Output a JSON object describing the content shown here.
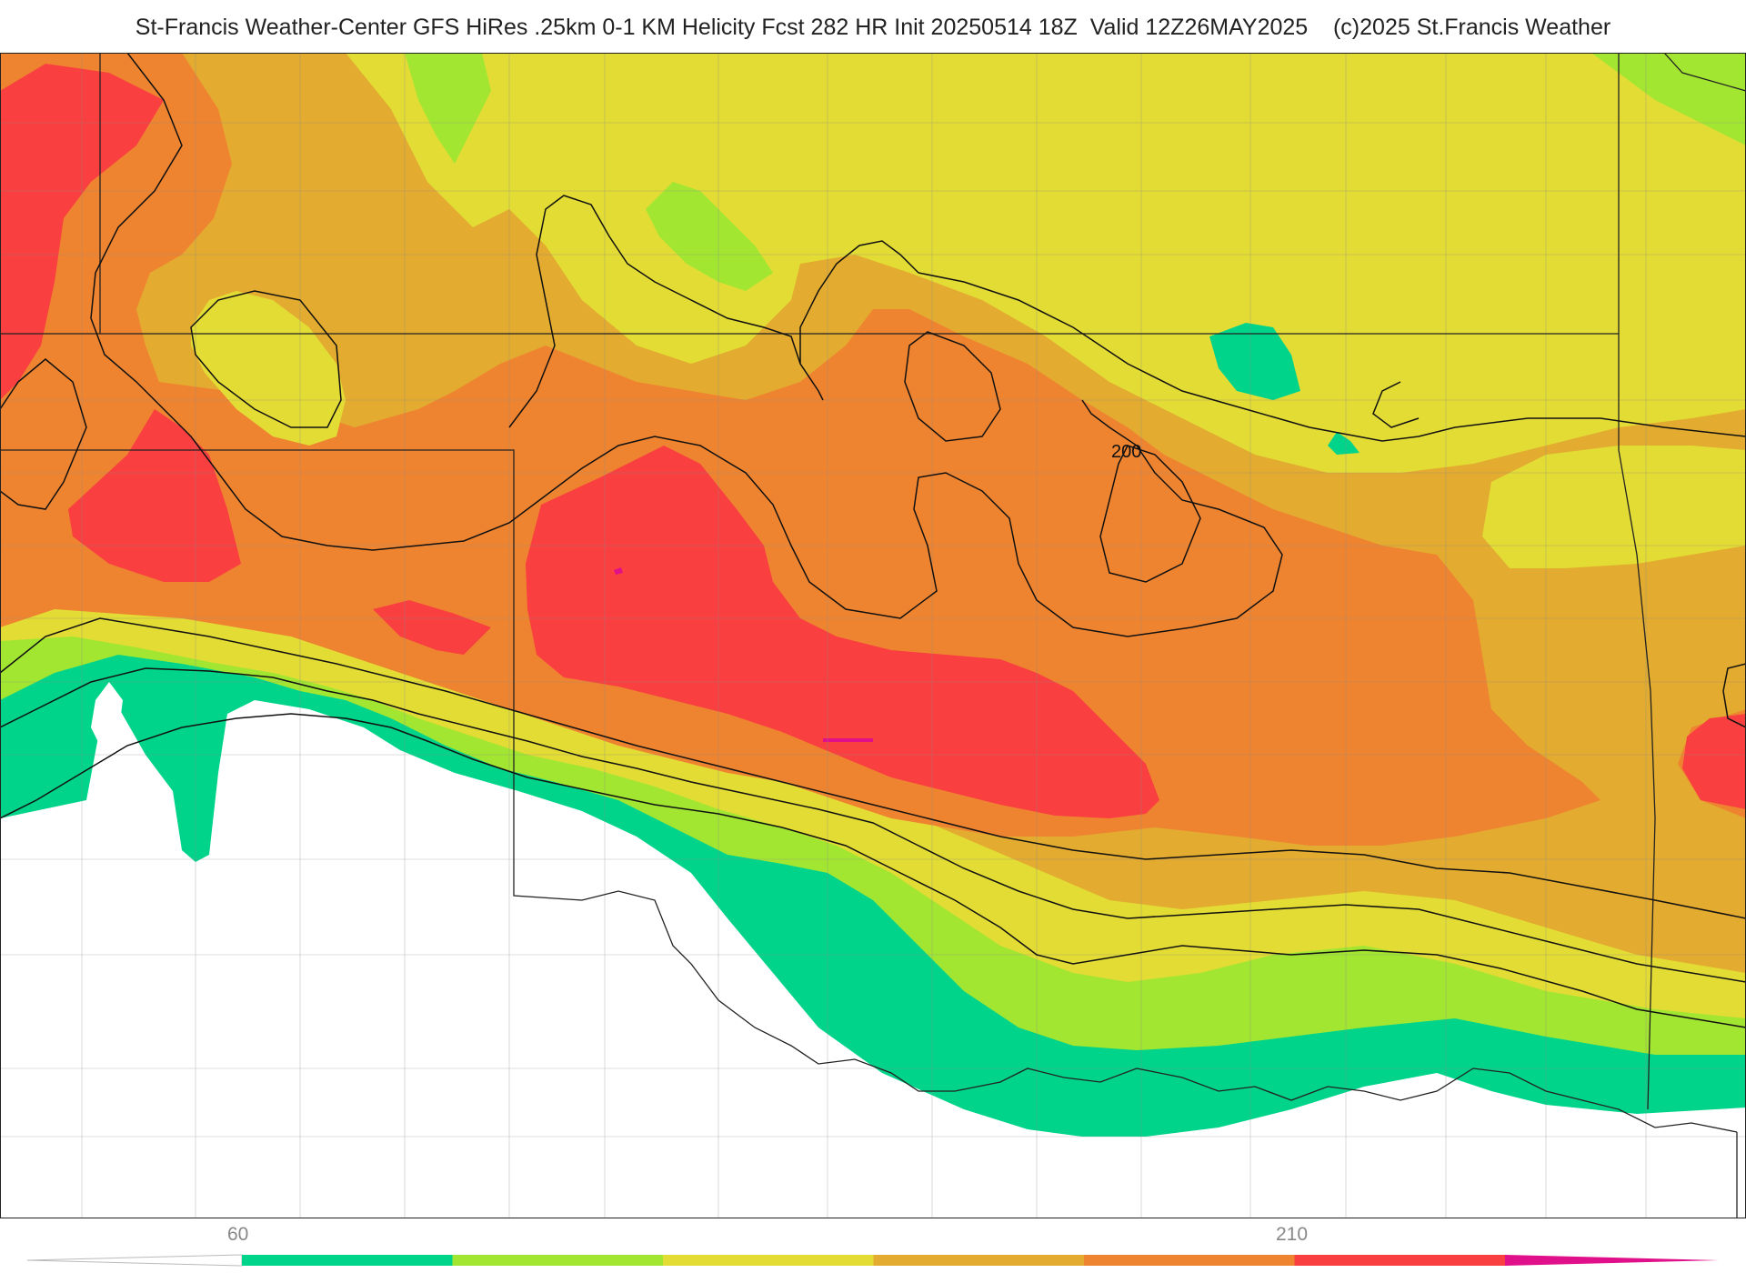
{
  "title": "St-Francis Weather-Center GFS HiRes .25km 0-1 KM Helicity Fcst 282 HR Init 20250514 18Z  Valid 12Z26MAY2025    (c)2025 St.Francis Weather",
  "contour_label": "200",
  "colorbar": {
    "tick_labels": [
      "60",
      "210"
    ],
    "bins": [
      {
        "color": "#00d48a"
      },
      {
        "color": "#a2e632"
      },
      {
        "color": "#e3dc35"
      },
      {
        "color": "#e3ab2f"
      },
      {
        "color": "#ef8430"
      },
      {
        "color": "#f93f3f"
      },
      {
        "color": "#e0108a"
      }
    ]
  },
  "colors": {
    "green": "#00d48a",
    "lightgreen": "#a2e632",
    "yellow": "#e3dc35",
    "gold": "#e3ab2f",
    "orange": "#ef8430",
    "red": "#f93f3f",
    "magenta": "#e0108a"
  }
}
